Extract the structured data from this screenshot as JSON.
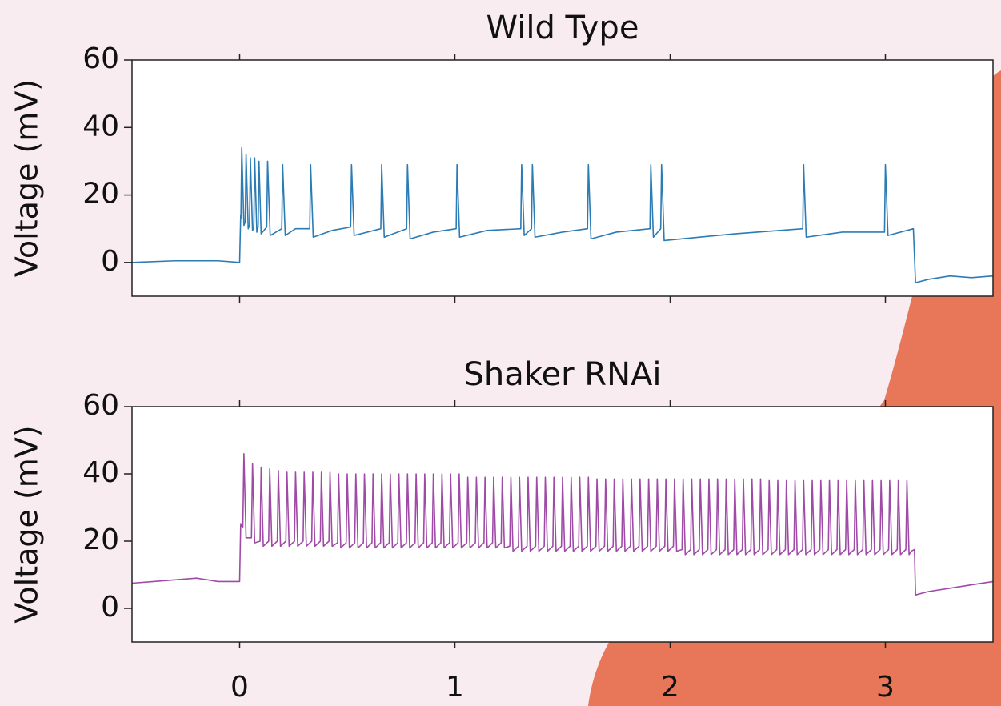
{
  "chart_data": [
    {
      "type": "line",
      "title": "Wild Type",
      "ylabel": "Voltage (mV)",
      "color": "#2b7bb5",
      "xlim": [
        -0.5,
        3.5
      ],
      "xticks": [
        0,
        1,
        2,
        3
      ],
      "xtick_labels": false,
      "ylim": [
        -10,
        60
      ],
      "yticks": [
        0,
        20,
        40,
        60
      ],
      "x": [
        -0.5,
        -0.3,
        -0.1,
        0,
        0.005,
        0.006,
        0.01,
        0.02,
        0.026,
        0.03,
        0.04,
        0.046,
        0.05,
        0.06,
        0.066,
        0.07,
        0.08,
        0.086,
        0.09,
        0.1,
        0.126,
        0.13,
        0.142,
        0.196,
        0.2,
        0.212,
        0.26,
        0.326,
        0.33,
        0.342,
        0.43,
        0.516,
        0.52,
        0.532,
        0.656,
        0.66,
        0.672,
        0.776,
        0.78,
        0.792,
        0.9,
        1.006,
        1.01,
        1.022,
        1.15,
        1.306,
        1.31,
        1.322,
        1.356,
        1.36,
        1.372,
        1.5,
        1.616,
        1.62,
        1.632,
        1.75,
        1.906,
        1.91,
        1.922,
        1.956,
        1.96,
        1.972,
        2.3,
        2.616,
        2.62,
        2.632,
        2.8,
        2.996,
        3,
        3.012,
        3.13,
        3.14,
        3.2,
        3.3,
        3.4,
        3.5
      ],
      "values": [
        0,
        0.5,
        0.5,
        0,
        14,
        13,
        34,
        11,
        12,
        32,
        10,
        11,
        31,
        9.5,
        10.5,
        31,
        9,
        10.5,
        30,
        8.5,
        10.5,
        30,
        8,
        10,
        29,
        8,
        10,
        10,
        29,
        7.5,
        9.5,
        10.5,
        29,
        8,
        10,
        29,
        7.5,
        10,
        29,
        7,
        9,
        10,
        29,
        7.5,
        9.5,
        10,
        29,
        8,
        10,
        29,
        7.5,
        9,
        10,
        29,
        7,
        9,
        10,
        29,
        7.5,
        10,
        29,
        6.5,
        8.5,
        10,
        29,
        7.5,
        9,
        9,
        29,
        8,
        10,
        -6,
        -5,
        -4,
        -4.5,
        -4
      ]
    },
    {
      "type": "line",
      "title": "Shaker RNAi",
      "ylabel": "Voltage (mV)",
      "color": "#a04aa8",
      "xlim": [
        -0.5,
        3.5
      ],
      "xticks": [
        0,
        1,
        2,
        3
      ],
      "xtick_labels": true,
      "ylim": [
        -10,
        60
      ],
      "yticks": [
        0,
        20,
        40,
        60
      ],
      "x": [
        -0.5,
        -0.4,
        -0.3,
        -0.2,
        -0.1,
        0,
        0.005,
        0.015,
        0.02,
        0.03,
        0.055,
        0.06,
        0.07,
        0.095,
        0.1,
        0.11,
        0.135,
        0.14,
        0.15,
        0.175,
        0.18,
        0.19,
        0.215,
        0.22,
        0.23,
        0.255,
        0.26,
        0.27,
        0.295,
        0.3,
        0.31,
        0.335,
        0.34,
        0.35,
        0.375,
        0.38,
        0.39,
        0.415,
        0.42,
        0.43,
        0.455,
        0.46,
        0.47,
        0.495,
        0.5,
        0.51,
        0.535,
        0.54,
        0.55,
        0.575,
        0.58,
        0.59,
        0.615,
        0.62,
        0.63,
        0.655,
        0.66,
        0.67,
        0.695,
        0.7,
        0.71,
        0.735,
        0.74,
        0.75,
        0.775,
        0.78,
        0.79,
        0.815,
        0.82,
        0.83,
        0.855,
        0.86,
        0.87,
        0.895,
        0.9,
        0.91,
        0.935,
        0.94,
        0.95,
        0.975,
        0.98,
        0.99,
        1.015,
        1.02,
        1.03,
        1.055,
        1.06,
        1.07,
        1.095,
        1.1,
        1.11,
        1.135,
        1.14,
        1.15,
        1.175,
        1.18,
        1.19,
        1.215,
        1.22,
        1.23,
        1.255,
        1.26,
        1.27,
        1.295,
        1.3,
        1.31,
        1.335,
        1.34,
        1.35,
        1.375,
        1.38,
        1.39,
        1.415,
        1.42,
        1.43,
        1.455,
        1.46,
        1.47,
        1.495,
        1.5,
        1.51,
        1.535,
        1.54,
        1.55,
        1.575,
        1.58,
        1.59,
        1.615,
        1.62,
        1.63,
        1.655,
        1.66,
        1.67,
        1.695,
        1.7,
        1.71,
        1.735,
        1.74,
        1.75,
        1.775,
        1.78,
        1.79,
        1.815,
        1.82,
        1.83,
        1.855,
        1.86,
        1.87,
        1.895,
        1.9,
        1.91,
        1.935,
        1.94,
        1.95,
        1.975,
        1.98,
        1.99,
        2.015,
        2.02,
        2.03,
        2.055,
        2.06,
        2.07,
        2.095,
        2.1,
        2.11,
        2.135,
        2.14,
        2.15,
        2.175,
        2.18,
        2.19,
        2.215,
        2.22,
        2.23,
        2.255,
        2.26,
        2.27,
        2.295,
        2.3,
        2.31,
        2.335,
        2.34,
        2.35,
        2.375,
        2.38,
        2.39,
        2.415,
        2.42,
        2.43,
        2.455,
        2.46,
        2.47,
        2.495,
        2.5,
        2.51,
        2.535,
        2.54,
        2.55,
        2.575,
        2.58,
        2.59,
        2.615,
        2.62,
        2.63,
        2.655,
        2.66,
        2.67,
        2.695,
        2.7,
        2.71,
        2.735,
        2.74,
        2.75,
        2.775,
        2.78,
        2.79,
        2.815,
        2.82,
        2.83,
        2.855,
        2.86,
        2.87,
        2.895,
        2.9,
        2.91,
        2.935,
        2.94,
        2.95,
        2.975,
        2.98,
        2.99,
        3.015,
        3.02,
        3.03,
        3.055,
        3.06,
        3.07,
        3.095,
        3.1,
        3.11,
        3.12,
        3.135,
        3.14,
        3.2,
        3.3,
        3.4,
        3.5
      ],
      "values": [
        7.5,
        8,
        8.5,
        9,
        8,
        8,
        25,
        24,
        46,
        21,
        21,
        43,
        19.5,
        20,
        42,
        18.5,
        20,
        41.5,
        18.5,
        20,
        41,
        18.5,
        20,
        40.5,
        18.5,
        20,
        40.5,
        18.5,
        20,
        40.5,
        18.5,
        20,
        40.5,
        18.5,
        20,
        40.5,
        18.5,
        20,
        40.5,
        18.5,
        19.5,
        40,
        18,
        19.5,
        40,
        18,
        19.5,
        40,
        18,
        19.5,
        40,
        18,
        19.5,
        40,
        18,
        19.5,
        40,
        18,
        19.5,
        40,
        18,
        19.5,
        40,
        18,
        19.5,
        40,
        18,
        19.5,
        40,
        18,
        19.5,
        40,
        18,
        19.5,
        40,
        18,
        19.5,
        40,
        18,
        19.5,
        40,
        18,
        19.5,
        40,
        18,
        19.5,
        39,
        18,
        19.5,
        39,
        18,
        19.5,
        39,
        18,
        19.5,
        39,
        18,
        19.5,
        39,
        18,
        18.5,
        39,
        17,
        18.5,
        39,
        17,
        18.5,
        39,
        17,
        18.5,
        39,
        17,
        18.5,
        39,
        17,
        18.5,
        39,
        17,
        18.5,
        39,
        17,
        18.5,
        39,
        17,
        18.5,
        39,
        17,
        18.5,
        39,
        17,
        18.5,
        38.5,
        17,
        18.5,
        38.5,
        17,
        18.5,
        38.5,
        17,
        18.5,
        38.5,
        17,
        18.5,
        38.5,
        17,
        18.5,
        38.5,
        17,
        18.5,
        38.5,
        17,
        18.5,
        38.5,
        17,
        18.5,
        38.5,
        17,
        18.5,
        38.5,
        17,
        17.5,
        38.5,
        16,
        17.5,
        38.5,
        16,
        17.5,
        38.5,
        16,
        17.5,
        38.5,
        16,
        17.5,
        38.5,
        16,
        17.5,
        38.5,
        16,
        17.5,
        38.5,
        16,
        17.5,
        38.5,
        16,
        17.5,
        38.5,
        16,
        17.5,
        38.5,
        16,
        17.5,
        38,
        16,
        17.5,
        38,
        16,
        17.5,
        38,
        16,
        17.5,
        38,
        16,
        17.5,
        38,
        16,
        17.5,
        38,
        16,
        17.5,
        38,
        16,
        17.5,
        38,
        16,
        17.5,
        38,
        16,
        17.5,
        38,
        16,
        17.5,
        38,
        16,
        17.5,
        38,
        16,
        17.5,
        38,
        16,
        17.5,
        38,
        16,
        17.5,
        38,
        16,
        17.5,
        38,
        16,
        17.5,
        38,
        16,
        17,
        17.5,
        4,
        5,
        6,
        7,
        8
      ]
    }
  ]
}
